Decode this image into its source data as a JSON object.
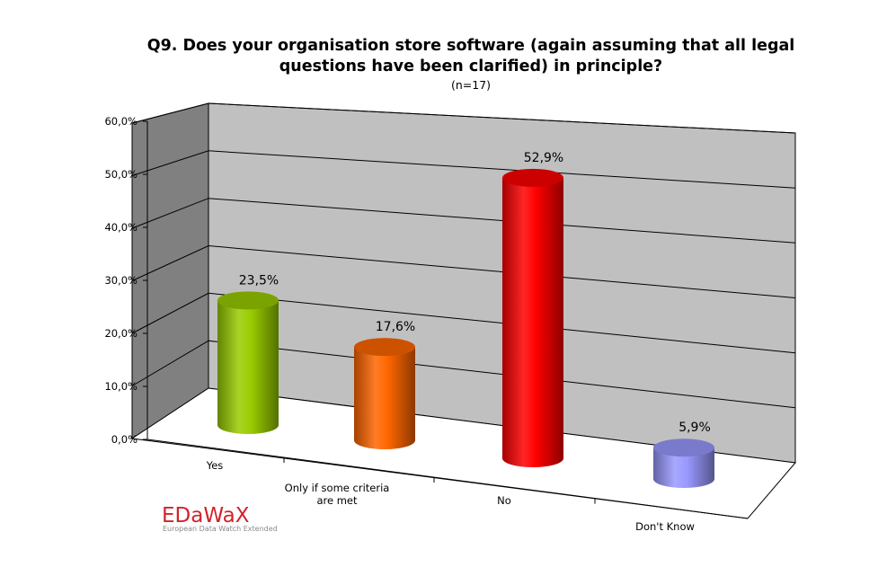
{
  "chart_data": {
    "type": "bar",
    "title_line1": "Q9. Does your organisation store software (again assuming that all legal",
    "title_line2": "questions have been clarified) in principle?",
    "subtitle": "(n=17)",
    "categories": [
      "Yes",
      "Only if some criteria are met",
      "No",
      "Don't Know"
    ],
    "category_lines": [
      [
        "Yes"
      ],
      [
        "Only if some criteria",
        "are met"
      ],
      [
        "No"
      ],
      [
        "Don't Know"
      ]
    ],
    "values": [
      23.5,
      17.6,
      52.9,
      5.9
    ],
    "data_labels": [
      "23,5%",
      "17,6%",
      "52,9%",
      "5,9%"
    ],
    "bar_colors": [
      "#99cc00",
      "#ff6600",
      "#ff0000",
      "#9999ff"
    ],
    "ylim": [
      0,
      60
    ],
    "yticks": [
      0,
      10,
      20,
      30,
      40,
      50,
      60
    ],
    "ytick_labels": [
      "0,0%",
      "10,0%",
      "20,0%",
      "30,0%",
      "40,0%",
      "50,0%",
      "60,0%"
    ],
    "grid": true,
    "style": "3d-cylinder",
    "wall_color": "#c0c0c0"
  },
  "logo": {
    "name": "EDaWaX",
    "tagline": "European Data Watch Extended"
  }
}
